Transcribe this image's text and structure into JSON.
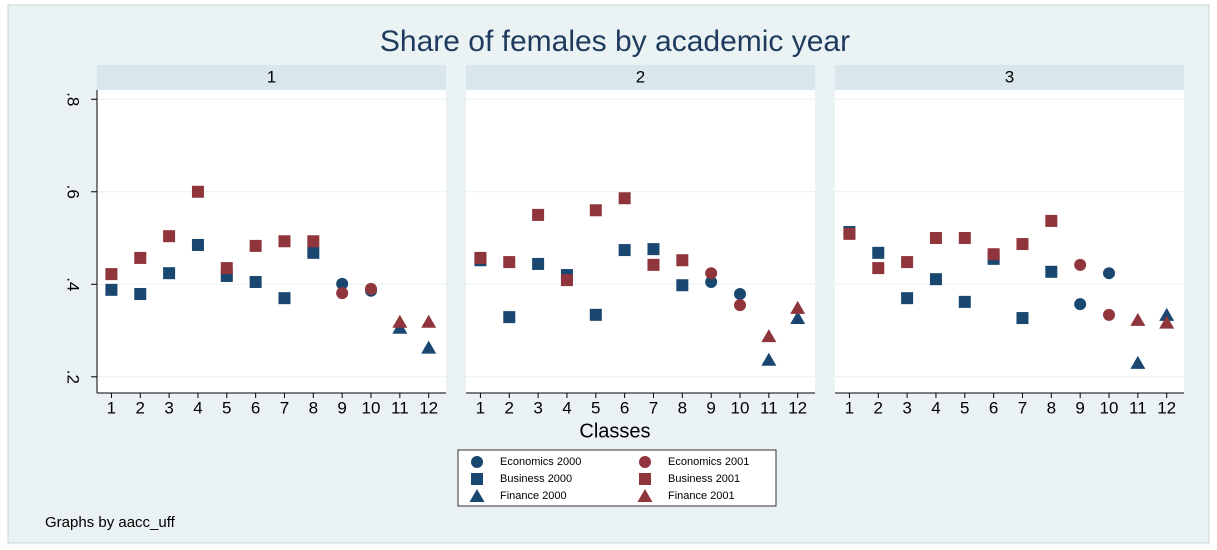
{
  "chart_data": {
    "type": "scatter",
    "title": "Share of females by academic year",
    "xlabel": "Classes",
    "note": "Graphs by aacc_uff",
    "panel_labels": [
      "1",
      "2",
      "3"
    ],
    "x": [
      1,
      2,
      3,
      4,
      5,
      6,
      7,
      8,
      9,
      10,
      11,
      12
    ],
    "xticks": [
      1,
      2,
      3,
      4,
      5,
      6,
      7,
      8,
      9,
      10,
      11,
      12
    ],
    "xlim": [
      0.5,
      12.6
    ],
    "ylim": [
      0.165,
      0.82
    ],
    "yticks": [
      {
        "value": 0.2,
        "label": ".2"
      },
      {
        "value": 0.4,
        "label": ".4"
      },
      {
        "value": 0.6,
        "label": ".6"
      },
      {
        "value": 0.8,
        "label": ".8"
      }
    ],
    "grid": true,
    "series": [
      {
        "name": "Economics 2000",
        "color": "#1a476f",
        "marker": "circle",
        "panels": [
          [
            null,
            null,
            null,
            null,
            null,
            null,
            null,
            null,
            0.401,
            0.386,
            null,
            null
          ],
          [
            null,
            null,
            null,
            null,
            null,
            null,
            null,
            null,
            0.405,
            0.379,
            null,
            null
          ],
          [
            null,
            null,
            null,
            null,
            null,
            null,
            null,
            null,
            0.357,
            0.424,
            null,
            null
          ]
        ]
      },
      {
        "name": "Economics 2001",
        "color": "#90353b",
        "marker": "circle",
        "panels": [
          [
            null,
            null,
            null,
            null,
            null,
            null,
            null,
            null,
            0.381,
            0.39,
            null,
            null
          ],
          [
            null,
            null,
            null,
            null,
            null,
            null,
            null,
            null,
            0.424,
            0.355,
            null,
            null
          ],
          [
            null,
            null,
            null,
            null,
            null,
            null,
            null,
            null,
            0.442,
            0.334,
            null,
            null
          ]
        ]
      },
      {
        "name": "Business 2000",
        "color": "#1a476f",
        "marker": "square",
        "panels": [
          [
            0.388,
            0.379,
            0.424,
            0.485,
            0.418,
            0.405,
            0.37,
            0.468,
            null,
            null,
            null,
            null
          ],
          [
            0.452,
            0.329,
            0.444,
            0.42,
            0.334,
            0.474,
            0.476,
            0.398,
            null,
            null,
            null,
            null
          ],
          [
            0.513,
            0.468,
            0.37,
            0.411,
            0.362,
            0.455,
            0.327,
            0.427,
            null,
            null,
            null,
            null
          ]
        ]
      },
      {
        "name": "Business 2001",
        "color": "#90353b",
        "marker": "square",
        "panels": [
          [
            0.422,
            0.457,
            0.504,
            0.6,
            0.435,
            0.483,
            0.493,
            0.493,
            null,
            null,
            null,
            null
          ],
          [
            0.457,
            0.448,
            0.55,
            0.409,
            0.56,
            0.586,
            0.442,
            0.452,
            null,
            null,
            null,
            null
          ],
          [
            0.509,
            0.435,
            0.448,
            0.5,
            0.5,
            0.465,
            0.487,
            0.537,
            null,
            null,
            null,
            null
          ]
        ]
      },
      {
        "name": "Finance 2000",
        "color": "#1a476f",
        "marker": "triangle",
        "panels": [
          [
            null,
            null,
            null,
            null,
            null,
            null,
            null,
            null,
            null,
            null,
            0.306,
            0.263
          ],
          [
            null,
            null,
            null,
            null,
            null,
            null,
            null,
            null,
            null,
            null,
            0.237,
            0.327
          ],
          [
            null,
            null,
            null,
            null,
            null,
            null,
            null,
            null,
            null,
            null,
            0.23,
            0.334
          ]
        ]
      },
      {
        "name": "Finance 2001",
        "color": "#90353b",
        "marker": "triangle",
        "panels": [
          [
            null,
            null,
            null,
            null,
            null,
            null,
            null,
            null,
            null,
            null,
            0.319,
            0.319
          ],
          [
            null,
            null,
            null,
            null,
            null,
            null,
            null,
            null,
            null,
            null,
            0.288,
            0.349
          ],
          [
            null,
            null,
            null,
            null,
            null,
            null,
            null,
            null,
            null,
            null,
            0.323,
            0.317
          ]
        ]
      }
    ]
  }
}
